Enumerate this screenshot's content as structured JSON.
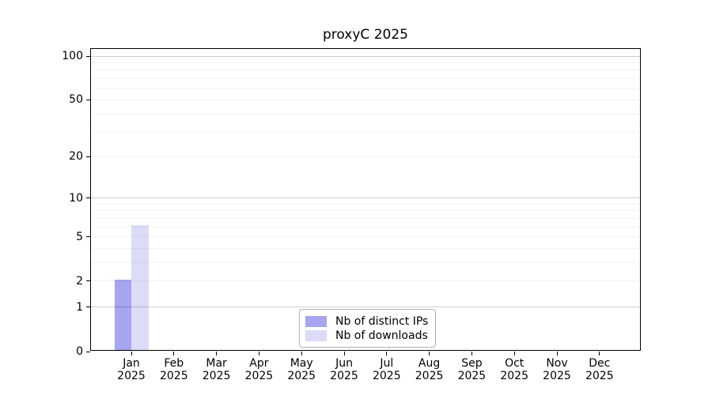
{
  "title": "proxyC 2025",
  "chart_data": {
    "type": "bar",
    "title": "proxyC 2025",
    "categories": [
      "Jan 2025",
      "Feb 2025",
      "Mar 2025",
      "Apr 2025",
      "May 2025",
      "Jun 2025",
      "Jul 2025",
      "Aug 2025",
      "Sep 2025",
      "Oct 2025",
      "Nov 2025",
      "Dec 2025"
    ],
    "series": [
      {
        "name": "Nb of distinct IPs",
        "color": "#a5a5f0",
        "values": [
          2,
          0,
          0,
          0,
          0,
          0,
          0,
          0,
          0,
          0,
          0,
          0
        ]
      },
      {
        "name": "Nb of downloads",
        "color": "#dcdcf8",
        "values": [
          6,
          0,
          0,
          0,
          0,
          0,
          0,
          0,
          0,
          0,
          0,
          0
        ]
      }
    ],
    "xlabel": "",
    "ylabel": "",
    "yscale": "log1p",
    "ylim": [
      0,
      112
    ],
    "yticks": [
      0,
      1,
      2,
      5,
      10,
      20,
      50,
      100
    ],
    "gridlines": {
      "emphasized": [
        1,
        10,
        100
      ],
      "light": [
        2,
        3,
        4,
        5,
        6,
        7,
        8,
        9,
        20,
        30,
        40,
        50,
        60,
        70,
        80,
        90
      ]
    },
    "legend_position": "lower center",
    "colors": {
      "grid_emphasized": "#cfcfcf",
      "grid_light": "#f2f2f2",
      "axis": "#000000",
      "background": "#ffffff"
    }
  }
}
